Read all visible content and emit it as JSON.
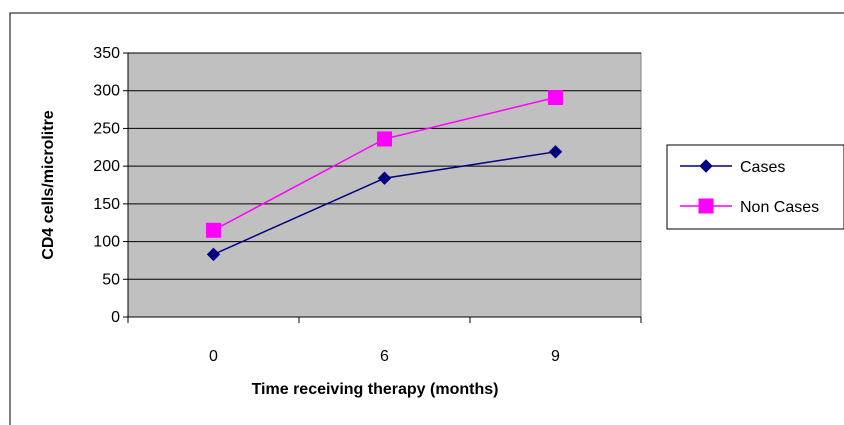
{
  "chart_data": {
    "type": "line",
    "categories": [
      "0",
      "6",
      "9"
    ],
    "series": [
      {
        "name": "Cases",
        "values": [
          83,
          184,
          219
        ],
        "color": "#000080",
        "marker": "diamond"
      },
      {
        "name": "Non Cases",
        "values": [
          115,
          236,
          291
        ],
        "color": "#ff00ff",
        "marker": "square"
      }
    ],
    "xlabel": "Time receiving therapy (months)",
    "ylabel": "CD4 cells/microlitre",
    "ylim": [
      0,
      350
    ],
    "yticks": [
      0,
      50,
      100,
      150,
      200,
      250,
      300,
      350
    ],
    "grid": true,
    "plot_background": "#c0c0c0",
    "legend_placement": "right"
  }
}
